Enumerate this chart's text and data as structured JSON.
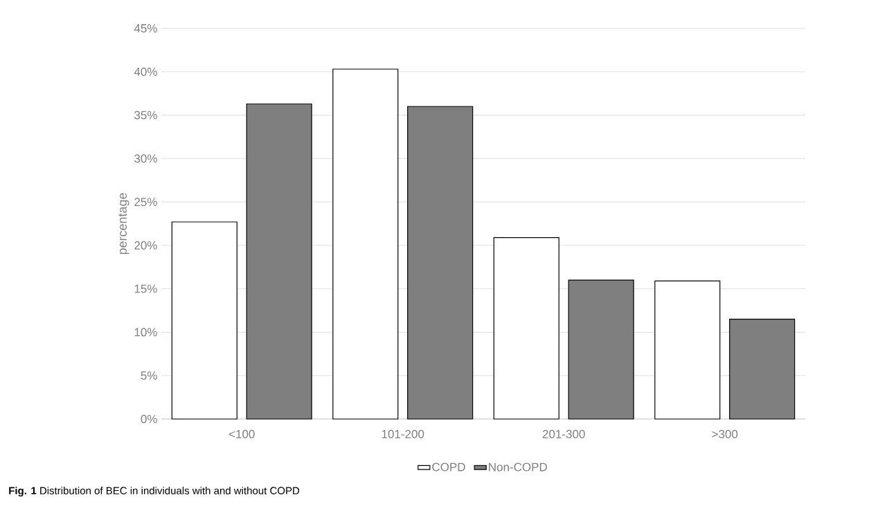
{
  "chart_data": {
    "type": "bar",
    "ylabel": "percentage",
    "categories": [
      "<100",
      "101-200",
      "201-300",
      ">300"
    ],
    "series": [
      {
        "name": "COPD",
        "color": "#ffffff",
        "values": [
          22.7,
          40.3,
          20.9,
          15.9
        ]
      },
      {
        "name": "Non-COPD",
        "color": "#7f7f7f",
        "values": [
          36.3,
          36.0,
          16.0,
          11.5
        ]
      }
    ],
    "ylim": [
      0,
      45
    ],
    "yticks": [
      {
        "value": 0,
        "label": "0%"
      },
      {
        "value": 5,
        "label": "5%"
      },
      {
        "value": 10,
        "label": "10%"
      },
      {
        "value": 15,
        "label": "15%"
      },
      {
        "value": 20,
        "label": "20%"
      },
      {
        "value": 25,
        "label": "25%"
      },
      {
        "value": 30,
        "label": "30%"
      },
      {
        "value": 35,
        "label": "35%"
      },
      {
        "value": 40,
        "label": "40%"
      },
      {
        "value": 45,
        "label": "45%"
      }
    ],
    "grid": "y",
    "legend": "bottom",
    "annotations": [
      "**Fig. 1** Distribution of BEC in individuals with and without COPD"
    ]
  }
}
